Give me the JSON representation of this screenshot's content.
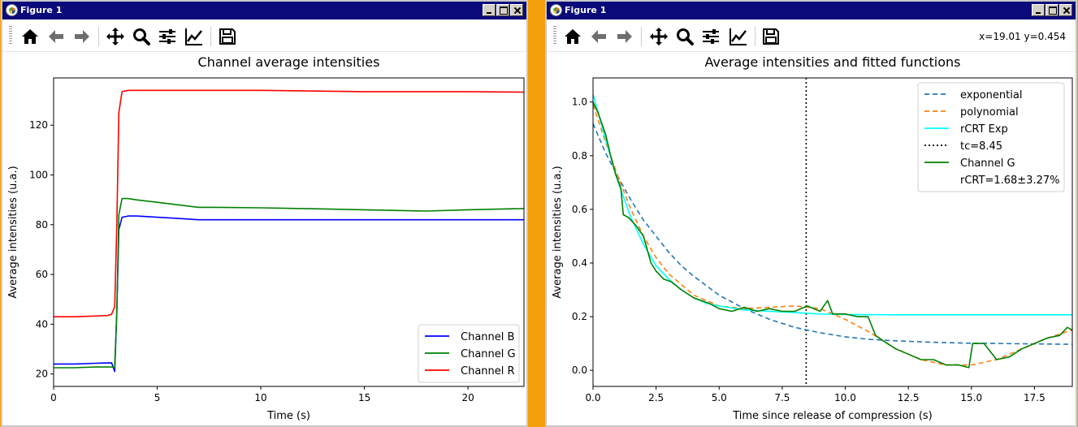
{
  "windows": [
    {
      "title": "Figure 1",
      "coords": "",
      "chart_data": {
        "type": "line",
        "title": "Channel average intensities",
        "xlabel": "Time (s)",
        "ylabel": "Average intensities (u.a.)",
        "xlim": [
          0,
          22.7
        ],
        "ylim": [
          15,
          139
        ],
        "xticks": [
          0,
          5,
          10,
          15,
          20
        ],
        "yticks": [
          20,
          40,
          60,
          80,
          100,
          120
        ],
        "grid": false,
        "legend_position": "bottom-right",
        "series": [
          {
            "name": "Channel B",
            "color": "#0000ff",
            "x": [
              0,
              1,
              2,
              2.8,
              2.95,
              3.05,
              3.15,
              3.3,
              3.6,
              4,
              5,
              6,
              7,
              8,
              10,
              12,
              15,
              18,
              20,
              22.7
            ],
            "y": [
              24,
              24,
              24.3,
              24.5,
              21,
              45,
              78,
              83,
              83.5,
              83.5,
              83,
              82.5,
              82,
              82,
              82,
              82,
              82,
              82,
              82,
              82
            ]
          },
          {
            "name": "Channel G",
            "color": "#008000",
            "x": [
              0,
              1,
              2,
              2.8,
              2.95,
              3.05,
              3.15,
              3.3,
              3.6,
              4,
              5,
              6,
              7,
              8,
              10,
              12,
              15,
              18,
              20,
              22.7
            ],
            "y": [
              22.5,
              22.5,
              22.8,
              22.8,
              22.5,
              45,
              84,
              90.5,
              90.5,
              90,
              89,
              88,
              87,
              87,
              86.8,
              86.5,
              86,
              85.5,
              86,
              86.5
            ]
          },
          {
            "name": "Channel R",
            "color": "#ff0000",
            "x": [
              0,
              1,
              2,
              2.6,
              2.8,
              2.95,
              3.05,
              3.15,
              3.3,
              3.6,
              4,
              6,
              8,
              10,
              12,
              15,
              18,
              20,
              22.7
            ],
            "y": [
              43,
              43,
              43.3,
              43.5,
              44,
              47,
              80,
              125,
              133.5,
              134,
              134,
              134,
              134,
              134,
              133.8,
              133.5,
              133.5,
              133.5,
              133.3
            ]
          }
        ]
      }
    },
    {
      "title": "Figure 1",
      "coords": "x=19.01 y=0.454",
      "chart_data": {
        "type": "line",
        "title": "Average intensities and fitted functions",
        "xlabel": "Time since release of compression (s)",
        "ylabel": "Average intensities (u.a.)",
        "xlim": [
          0,
          19
        ],
        "ylim": [
          -0.06,
          1.09
        ],
        "xticks": [
          0.0,
          2.5,
          5.0,
          7.5,
          10.0,
          12.5,
          15.0,
          17.5
        ],
        "xtick_labels": [
          "0.0",
          "2.5",
          "5.0",
          "7.5",
          "10.0",
          "12.5",
          "15.0",
          "17.5"
        ],
        "yticks": [
          0.0,
          0.2,
          0.4,
          0.6,
          0.8,
          1.0
        ],
        "ytick_labels": [
          "0.0",
          "0.2",
          "0.4",
          "0.6",
          "0.8",
          "1.0"
        ],
        "grid": false,
        "legend_position": "top-right",
        "vline": {
          "x": 8.45,
          "style": "dotted",
          "color": "#000000"
        },
        "series": [
          {
            "name": "exponential",
            "color": "#1f77b4",
            "dash": "6,4",
            "x": [
              0,
              0.5,
              1,
              1.5,
              2,
              2.5,
              3,
              3.5,
              4,
              5,
              6,
              7,
              8,
              9,
              10,
              11,
              12,
              13,
              14,
              15,
              16,
              17,
              18,
              19
            ],
            "y": [
              0.92,
              0.81,
              0.72,
              0.635,
              0.56,
              0.5,
              0.44,
              0.39,
              0.35,
              0.28,
              0.23,
              0.19,
              0.16,
              0.14,
              0.125,
              0.115,
              0.11,
              0.106,
              0.103,
              0.101,
              0.1,
              0.099,
              0.098,
              0.097
            ]
          },
          {
            "name": "polynomial",
            "color": "#ff7f0e",
            "dash": "6,4",
            "x": [
              0,
              0.5,
              1,
              1.5,
              2,
              2.5,
              3,
              4,
              5,
              6,
              7,
              8,
              9,
              10,
              11,
              12,
              13,
              14,
              15,
              16,
              17,
              18,
              19
            ],
            "y": [
              0.99,
              0.85,
              0.72,
              0.6,
              0.5,
              0.42,
              0.36,
              0.28,
              0.24,
              0.23,
              0.235,
              0.24,
              0.23,
              0.19,
              0.14,
              0.08,
              0.04,
              0.02,
              0.02,
              0.04,
              0.08,
              0.12,
              0.15
            ]
          },
          {
            "name": "rCRT Exp",
            "color": "#00ffff",
            "dash": "",
            "x": [
              0,
              0.5,
              1,
              1.5,
              2,
              2.5,
              3,
              3.5,
              4,
              4.5,
              5,
              6,
              7,
              8,
              9,
              10,
              12,
              15,
              19
            ],
            "y": [
              1.03,
              0.86,
              0.7,
              0.57,
              0.47,
              0.39,
              0.34,
              0.3,
              0.27,
              0.25,
              0.24,
              0.225,
              0.22,
              0.215,
              0.21,
              0.208,
              0.207,
              0.207,
              0.207
            ]
          },
          {
            "name": "Channel G",
            "color": "#008000",
            "dash": "",
            "x": [
              0,
              0.2,
              0.5,
              0.7,
              0.9,
              1.1,
              1.2,
              1.4,
              1.7,
              2,
              2.3,
              2.5,
              2.8,
              3.1,
              3.5,
              4,
              4.6,
              5,
              5.5,
              6,
              6.5,
              7,
              7.5,
              8,
              8.5,
              9,
              9.3,
              9.5,
              10,
              10.5,
              10.9,
              11.2,
              11.5,
              12,
              12.5,
              13,
              13.5,
              14,
              14.5,
              14.9,
              15.05,
              15.5,
              16,
              16.5,
              17,
              17.5,
              18,
              18.5,
              18.8,
              19
            ],
            "y": [
              1.0,
              0.96,
              0.88,
              0.8,
              0.73,
              0.68,
              0.58,
              0.57,
              0.54,
              0.5,
              0.4,
              0.37,
              0.34,
              0.33,
              0.3,
              0.27,
              0.25,
              0.23,
              0.22,
              0.235,
              0.22,
              0.23,
              0.22,
              0.22,
              0.24,
              0.22,
              0.26,
              0.21,
              0.21,
              0.2,
              0.2,
              0.13,
              0.11,
              0.08,
              0.06,
              0.04,
              0.04,
              0.02,
              0.02,
              0.01,
              0.1,
              0.1,
              0.04,
              0.05,
              0.08,
              0.1,
              0.12,
              0.13,
              0.16,
              0.15
            ]
          }
        ],
        "legend_entries": [
          {
            "label": "exponential",
            "color": "#1f77b4",
            "style": "dashed"
          },
          {
            "label": "polynomial",
            "color": "#ff7f0e",
            "style": "dashed"
          },
          {
            "label": "rCRT Exp",
            "color": "#00ffff",
            "style": "solid"
          },
          {
            "label": "tc=8.45",
            "color": "#000000",
            "style": "dotted"
          },
          {
            "label": "Channel G",
            "color": "#008000",
            "style": "solid"
          },
          {
            "label": "rCRT=1.68±3.27%",
            "color": "",
            "style": "none"
          }
        ]
      }
    }
  ],
  "toolbar_icons": [
    "home-icon",
    "back-arrow-icon",
    "forward-arrow-icon",
    "pan-icon",
    "zoom-icon",
    "subplots-icon",
    "axes-edit-icon",
    "save-icon"
  ]
}
